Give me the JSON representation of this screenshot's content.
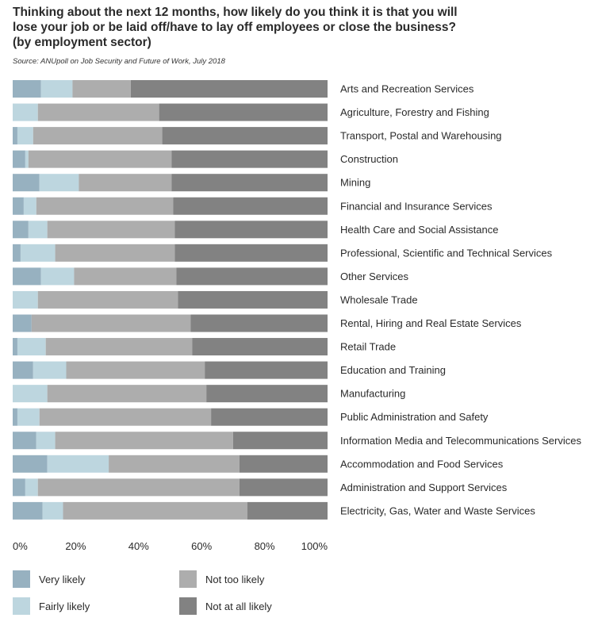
{
  "title_lines": [
    "Thinking about the next 12 months, how likely do you think it is that you will",
    "lose your job or be laid off/have to lay off employees or close the business?",
    "(by employment sector)"
  ],
  "source": "Source: ANUpoll on Job Security and Future of Work, July 2018",
  "colors": {
    "very_likely": "#97b1c0",
    "fairly_likely": "#bdd6df",
    "not_too_likely": "#adadad",
    "not_at_all_likely": "#828282"
  },
  "legend": [
    {
      "key": "very_likely",
      "label": "Very likely"
    },
    {
      "key": "fairly_likely",
      "label": "Fairly likely"
    },
    {
      "key": "not_too_likely",
      "label": "Not too likely"
    },
    {
      "key": "not_at_all_likely",
      "label": "Not at all likely"
    }
  ],
  "chart_data": {
    "type": "bar",
    "orientation": "horizontal",
    "stacked": true,
    "title": "Thinking about the next 12 months, how likely do you think it is that you will lose your job or be laid off/have to lay off employees or close the business? (by employment sector)",
    "xlabel": "",
    "ylabel": "",
    "xlim": [
      0,
      100
    ],
    "x_ticks": [
      "0%",
      "20%",
      "40%",
      "60%",
      "80%",
      "100%"
    ],
    "grid": false,
    "legend_position": "bottom",
    "categories": [
      "Arts and Recreation Services",
      "Agriculture, Forestry and Fishing",
      "Transport, Postal and Warehousing",
      "Construction",
      "Mining",
      "Financial and Insurance Services",
      "Health Care and Social Assistance",
      "Professional, Scientific and Technical Services",
      "Other Services",
      "Wholesale Trade",
      "Rental, Hiring and Real Estate Services",
      "Retail Trade",
      "Education and Training",
      "Manufacturing",
      "Public Administration and Safety",
      "Information Media and Telecommunications Services",
      "Accommodation and Food Services",
      "Administration and Support Services",
      "Electricity, Gas, Water and Waste Services"
    ],
    "series": [
      {
        "name": "Very likely",
        "key": "very_likely",
        "values": [
          9,
          0,
          1.5,
          4,
          8.5,
          3.5,
          5,
          2.5,
          9,
          0,
          6,
          1.5,
          6.5,
          0,
          1.5,
          7.5,
          11,
          4,
          9.5
        ]
      },
      {
        "name": "Fairly likely",
        "key": "fairly_likely",
        "values": [
          10,
          8,
          5,
          1,
          12.5,
          4,
          6,
          11,
          10.5,
          8,
          0,
          9,
          10.5,
          11,
          7,
          6,
          19.5,
          4,
          6.5
        ]
      },
      {
        "name": "Not too likely",
        "key": "not_too_likely",
        "values": [
          18.5,
          38.5,
          41,
          45.5,
          29.5,
          43.5,
          40.5,
          38,
          32.5,
          44.5,
          50.5,
          46.5,
          44,
          50.5,
          54.5,
          56.5,
          41.5,
          64,
          58.5
        ]
      },
      {
        "name": "Not at all likely",
        "key": "not_at_all_likely",
        "values": [
          62.5,
          53.5,
          52.5,
          49.5,
          49.5,
          49,
          48.5,
          48.5,
          48,
          47.5,
          43.5,
          43,
          39,
          38.5,
          37,
          30,
          28,
          28,
          25.5
        ]
      }
    ]
  }
}
